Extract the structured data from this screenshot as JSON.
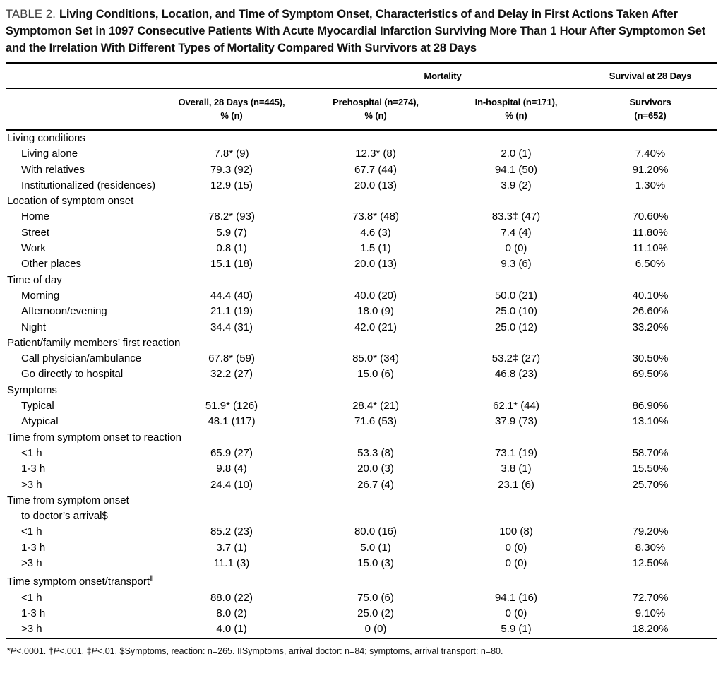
{
  "title": {
    "label": "TABLE 2.",
    "text": "Living Conditions, Location, and Time of Symptom Onset, Characteristics of and Delay in First Actions Taken After Symptomon Set in 1097 Consecutive Patients With Acute Myocardial Infarction Surviving More Than 1 Hour After Symptomon Set and the Irrelation With Different Types of Mortality Compared With Survivors at 28 Days"
  },
  "table": {
    "group_headers": [
      "Mortality",
      "Survival at 28 Days"
    ],
    "columns": [
      {
        "line1": "Overall, 28 Days (n=445),",
        "line2": "% (n)"
      },
      {
        "line1": "Prehospital (n=274),",
        "line2": "% (n)"
      },
      {
        "line1": "In-hospital (n=171),",
        "line2": "% (n)"
      },
      {
        "line1": "Survivors",
        "line2": "(n=652)"
      }
    ],
    "rows": [
      {
        "type": "section",
        "label": "Living conditions"
      },
      {
        "type": "data",
        "label": "Living alone",
        "cells": [
          "7.8* (9)",
          "12.3* (8)",
          "2.0 (1)",
          "7.40%"
        ]
      },
      {
        "type": "data",
        "label": "With relatives",
        "cells": [
          "79.3 (92)",
          "67.7 (44)",
          "94.1 (50)",
          "91.20%"
        ]
      },
      {
        "type": "data",
        "label": "Institutionalized (residences)",
        "cells": [
          "12.9 (15)",
          "20.0 (13)",
          "3.9 (2)",
          "1.30%"
        ]
      },
      {
        "type": "section",
        "label": "Location of symptom onset"
      },
      {
        "type": "data",
        "label": "Home",
        "cells": [
          "78.2* (93)",
          "73.8* (48)",
          "83.3‡ (47)",
          "70.60%"
        ]
      },
      {
        "type": "data",
        "label": "Street",
        "cells": [
          "5.9 (7)",
          "4.6 (3)",
          "7.4 (4)",
          "11.80%"
        ]
      },
      {
        "type": "data",
        "label": "Work",
        "cells": [
          "0.8 (1)",
          "1.5 (1)",
          "0 (0)",
          "11.10%"
        ]
      },
      {
        "type": "data",
        "label": "Other places",
        "cells": [
          "15.1 (18)",
          "20.0 (13)",
          "9.3 (6)",
          "6.50%"
        ]
      },
      {
        "type": "section",
        "label": "Time of day"
      },
      {
        "type": "data",
        "label": "Morning",
        "cells": [
          "44.4 (40)",
          "40.0 (20)",
          "50.0 (21)",
          "40.10%"
        ]
      },
      {
        "type": "data",
        "label": "Afternoon/evening",
        "cells": [
          "21.1 (19)",
          "18.0 (9)",
          "25.0 (10)",
          "26.60%"
        ]
      },
      {
        "type": "data",
        "label": "Night",
        "cells": [
          "34.4 (31)",
          "42.0 (21)",
          "25.0 (12)",
          "33.20%"
        ]
      },
      {
        "type": "section",
        "label": "Patient/family members’ first reaction"
      },
      {
        "type": "data",
        "label": "Call physician/ambulance",
        "cells": [
          "67.8* (59)",
          "85.0* (34)",
          "53.2‡ (27)",
          "30.50%"
        ]
      },
      {
        "type": "data",
        "label": "Go directly to hospital",
        "cells": [
          "32.2 (27)",
          "15.0 (6)",
          "46.8 (23)",
          "69.50%"
        ]
      },
      {
        "type": "section",
        "label": "Symptoms"
      },
      {
        "type": "data",
        "label": "Typical",
        "cells": [
          "51.9* (126)",
          "28.4* (21)",
          "62.1* (44)",
          "86.90%"
        ]
      },
      {
        "type": "data",
        "label": "Atypical",
        "cells": [
          "48.1 (117)",
          "71.6 (53)",
          "37.9 (73)",
          "13.10%"
        ]
      },
      {
        "type": "section",
        "label": "Time from symptom onset to reaction"
      },
      {
        "type": "data",
        "label": "<1 h",
        "cells": [
          "65.9 (27)",
          "53.3 (8)",
          "73.1 (19)",
          "58.70%"
        ]
      },
      {
        "type": "data",
        "label": "1-3 h",
        "cells": [
          "9.8 (4)",
          "20.0 (3)",
          "3.8 (1)",
          "15.50%"
        ]
      },
      {
        "type": "data",
        "label": ">3 h",
        "cells": [
          "24.4 (10)",
          "26.7 (4)",
          "23.1 (6)",
          "25.70%"
        ]
      },
      {
        "type": "section",
        "label": "Time from symptom onset"
      },
      {
        "type": "section",
        "label": "to doctor’s arrival$",
        "indent": true
      },
      {
        "type": "data",
        "label": "<1 h",
        "cells": [
          "85.2 (23)",
          "80.0 (16)",
          "100 (8)",
          "79.20%"
        ]
      },
      {
        "type": "data",
        "label": "1-3 h",
        "cells": [
          "3.7 (1)",
          "5.0 (1)",
          "0 (0)",
          "8.30%"
        ]
      },
      {
        "type": "data",
        "label": ">3 h",
        "cells": [
          "11.1 (3)",
          "15.0 (3)",
          "0 (0)",
          "12.50%"
        ]
      },
      {
        "type": "section",
        "label": "Time symptom onset/transport",
        "sup": "‖"
      },
      {
        "type": "data",
        "label": "<1 h",
        "cells": [
          "88.0 (22)",
          "75.0 (6)",
          "94.1 (16)",
          "72.70%"
        ]
      },
      {
        "type": "data",
        "label": "1-3 h",
        "cells": [
          "8.0 (2)",
          "25.0 (2)",
          "0 (0)",
          "9.10%"
        ]
      },
      {
        "type": "data",
        "label": ">3 h",
        "cells": [
          "4.0 (1)",
          "0 (0)",
          "5.9 (1)",
          "18.20%"
        ]
      }
    ]
  },
  "footnote": {
    "segments": [
      {
        "text": "*",
        "italic": false
      },
      {
        "text": "P",
        "italic": true
      },
      {
        "text": "<.0001. †",
        "italic": false
      },
      {
        "text": "P",
        "italic": true
      },
      {
        "text": "<.001. ‡",
        "italic": false
      },
      {
        "text": "P",
        "italic": true
      },
      {
        "text": "<.01. $Symptoms, reaction: n=265. IISymptoms, arrival doctor: n=84; symptoms, arrival transport: n=80.",
        "italic": false
      }
    ]
  }
}
